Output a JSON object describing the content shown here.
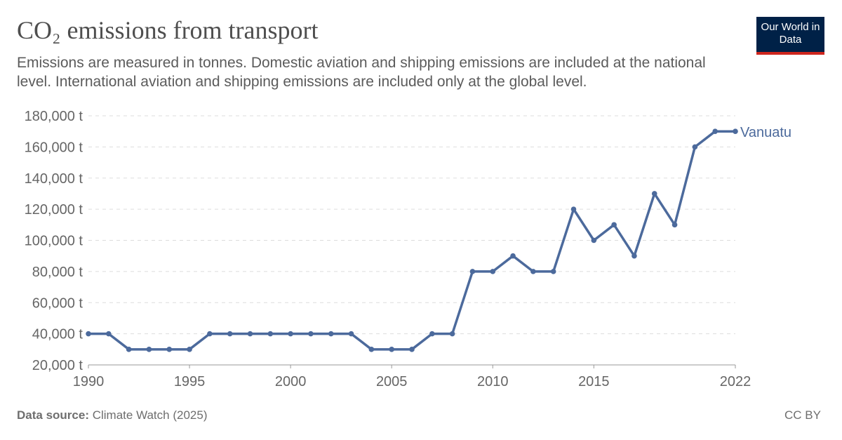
{
  "header": {
    "title": "CO₂ emissions from transport",
    "subtitle": "Emissions are measured in tonnes. Domestic aviation and shipping emissions are included at the national level. International aviation and shipping emissions are included only at the global level.",
    "logo": "Our World in Data"
  },
  "footer": {
    "source_label": "Data source:",
    "source": "Climate Watch (2025)",
    "license": "CC BY"
  },
  "chart_data": {
    "type": "line",
    "title": "CO₂ emissions from transport",
    "xlabel": "",
    "ylabel": "",
    "xlim": [
      1990,
      2022
    ],
    "ylim": [
      20000,
      180000
    ],
    "x_ticks": [
      1990,
      1995,
      2000,
      2005,
      2010,
      2015,
      2022
    ],
    "y_ticks": [
      20000,
      40000,
      60000,
      80000,
      100000,
      120000,
      140000,
      160000,
      180000
    ],
    "y_tick_suffix": " t",
    "grid": "horizontal dashed",
    "color": "#4c6a9c",
    "series": [
      {
        "name": "Vanuatu",
        "x": [
          1990,
          1991,
          1992,
          1993,
          1994,
          1995,
          1996,
          1997,
          1998,
          1999,
          2000,
          2001,
          2002,
          2003,
          2004,
          2005,
          2006,
          2007,
          2008,
          2009,
          2010,
          2011,
          2012,
          2013,
          2014,
          2015,
          2016,
          2017,
          2018,
          2019,
          2020,
          2021,
          2022
        ],
        "values": [
          40000,
          40000,
          30000,
          30000,
          30000,
          30000,
          40000,
          40000,
          40000,
          40000,
          40000,
          40000,
          40000,
          40000,
          30000,
          30000,
          30000,
          40000,
          40000,
          80000,
          80000,
          90000,
          80000,
          80000,
          120000,
          100000,
          110000,
          90000,
          130000,
          110000,
          160000,
          170000,
          170000
        ]
      }
    ]
  }
}
